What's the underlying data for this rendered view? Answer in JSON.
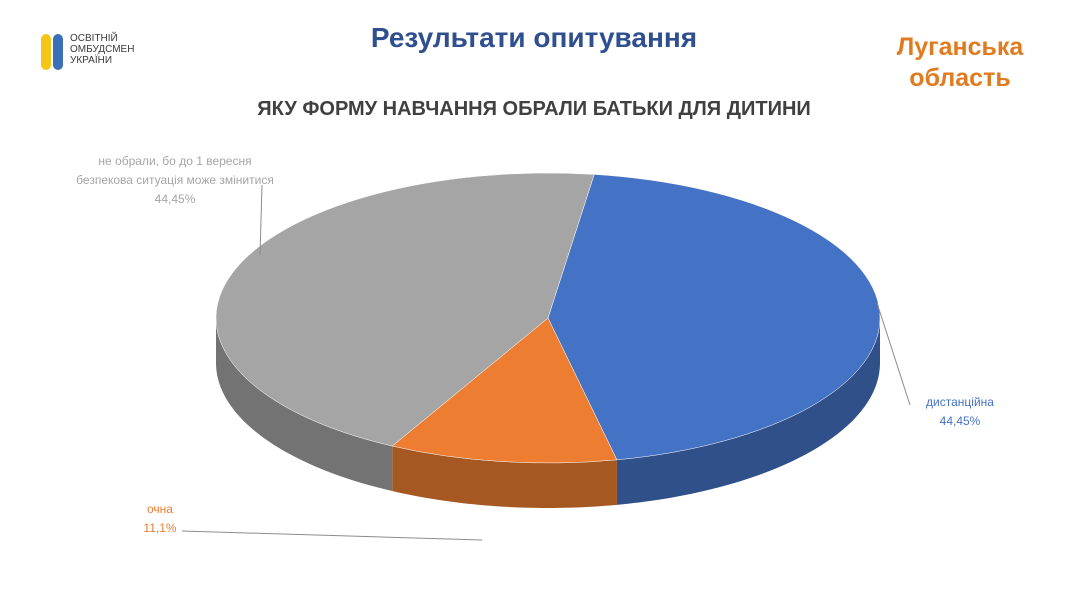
{
  "chart_data": {
    "type": "pie",
    "title": "Результати опитування",
    "region": "Луганська область",
    "subtitle": "ЯКУ ФОРМУ НАВЧАННЯ ОБРАЛИ БАТЬКИ ДЛЯ ДИТИНИ",
    "logo": [
      "ОСВІТНІЙ",
      "ОМБУДСМЕН",
      "УКРАЇНИ"
    ],
    "categories": [
      "дистанційна",
      "очна",
      "не обрали, бо до 1 вересня безпекова ситуація може змінитися"
    ],
    "values": [
      44.45,
      11.1,
      44.45
    ],
    "value_labels": [
      "44,45%",
      "11,1%",
      "44,45%"
    ],
    "colors": [
      "#4472c4",
      "#ed7d31",
      "#a5a5a5"
    ]
  }
}
